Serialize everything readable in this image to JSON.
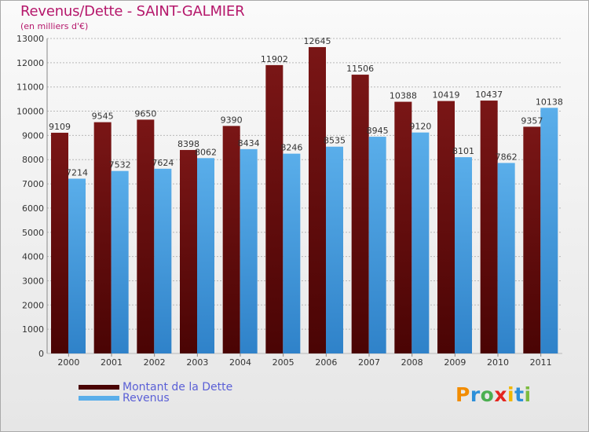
{
  "header": {
    "title": "Revenus/Dette - SAINT-GALMIER",
    "subtitle": "(en milliers d'€)"
  },
  "colors": {
    "dette": "#7a1616",
    "dette_dark": "#4a0404",
    "revenus": "#5aaeea",
    "revenus_dark": "#2f82c9",
    "grid": "#b8b8b8",
    "axis_text": "#333333"
  },
  "logo": {
    "letters": [
      {
        "ch": "P",
        "color": "#f28c00"
      },
      {
        "ch": "r",
        "color": "#2c8fd9"
      },
      {
        "ch": "o",
        "color": "#4caf50"
      },
      {
        "ch": "x",
        "color": "#e4261f"
      },
      {
        "ch": "i",
        "color": "#f2b600"
      },
      {
        "ch": "t",
        "color": "#2c8fd9"
      },
      {
        "ch": "i",
        "color": "#7dbb3f"
      }
    ]
  },
  "chart_data": {
    "type": "bar",
    "title": "Revenus/Dette - SAINT-GALMIER",
    "subtitle": "(en milliers d'€)",
    "categories": [
      "2000",
      "2001",
      "2002",
      "2003",
      "2004",
      "2005",
      "2006",
      "2007",
      "2008",
      "2009",
      "2010",
      "2011"
    ],
    "series": [
      {
        "name": "Montant de la Dette",
        "values": [
          9109,
          9545,
          9650,
          8398,
          9390,
          11902,
          12645,
          11506,
          10388,
          10419,
          10437,
          9357
        ]
      },
      {
        "name": "Revenus",
        "values": [
          7214,
          7532,
          7624,
          8062,
          8434,
          8246,
          8535,
          8945,
          9120,
          8101,
          7862,
          10138
        ]
      }
    ],
    "ylim": [
      0,
      13000
    ],
    "yticks": [
      "0",
      "1000",
      "2000",
      "3000",
      "4000",
      "5000",
      "6000",
      "7000",
      "8000",
      "9000",
      "10000",
      "11000",
      "12000",
      "13000"
    ],
    "grid": true,
    "legend": "bottom-left"
  }
}
